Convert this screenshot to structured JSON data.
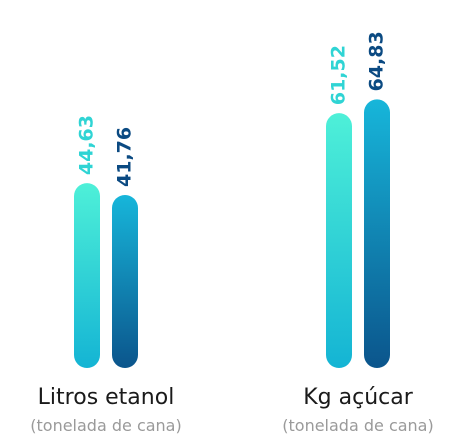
{
  "chart_data": {
    "type": "bar",
    "categories": [
      "Litros etanol",
      "Kg açúcar"
    ],
    "category_notes": [
      "(tonelada de cana)",
      "(tonelada de cana)"
    ],
    "series": [
      {
        "color": "#4ef0d8",
        "color_end": "#14b4d4",
        "label_color": "#2fd4d4",
        "values": [
          44.63,
          61.52
        ],
        "value_labels": [
          "44,63",
          "61,52"
        ]
      },
      {
        "color": "#17b6da",
        "color_end": "#0b558c",
        "label_color": "#0b4a82",
        "values": [
          41.76,
          64.83
        ],
        "value_labels": [
          "41,76",
          "64,83"
        ]
      }
    ],
    "ylim": [
      0,
      70
    ]
  }
}
